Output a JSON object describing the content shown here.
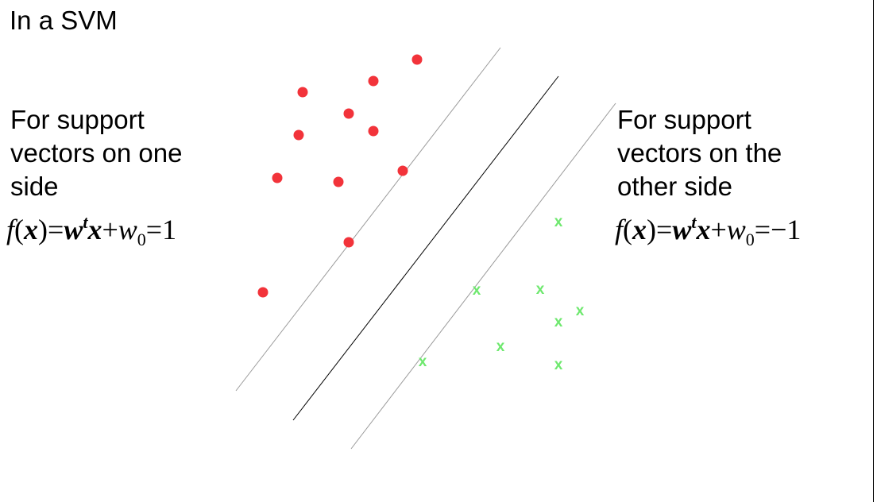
{
  "title": "In a SVM",
  "left_caption": {
    "lines": [
      "For support",
      "vectors on one",
      "side"
    ],
    "formula": {
      "f": "f",
      "open": "(",
      "x": "x",
      "close_eq": ")=",
      "w": "w",
      "t": "t",
      "x2": "x",
      "plus": "+",
      "w0": "w",
      "zero": "0",
      "rhs": "=1"
    }
  },
  "right_caption": {
    "lines": [
      "For support",
      "vectors on the",
      "other side"
    ],
    "formula": {
      "f": "f",
      "open": "(",
      "x": "x",
      "close_eq": ")=",
      "w": "w",
      "t": "t",
      "x2": "x",
      "plus": "+",
      "w0": "w",
      "zero": "0",
      "rhs": "=−1"
    }
  },
  "markers": {
    "cross_glyph": "x"
  },
  "colors": {
    "positive": "#f2333a",
    "negative": "#6ee86e",
    "margin_line": "#9a9a9a",
    "boundary_line": "#000000"
  }
}
